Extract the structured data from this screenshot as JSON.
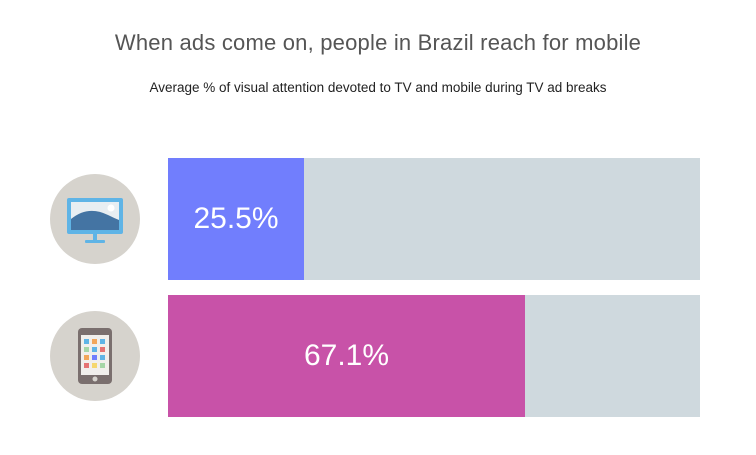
{
  "title": "When ads come on, people in Brazil reach for mobile",
  "subtitle": "Average % of visual attention devoted to TV and mobile during TV ad breaks",
  "chart_data": {
    "type": "bar",
    "orientation": "horizontal",
    "title": "When ads come on, people in Brazil reach for mobile",
    "subtitle": "Average % of visual attention devoted to TV and mobile during TV ad breaks",
    "categories": [
      "TV",
      "Mobile"
    ],
    "values": [
      25.5,
      67.1
    ],
    "labels": [
      "25.5%",
      "67.1%"
    ],
    "xlim": [
      0,
      100
    ],
    "unit": "%",
    "colors": [
      "#717efd",
      "#c852a8"
    ],
    "track_color": "#cfd9de",
    "icons": [
      "tv-icon",
      "smartphone-icon"
    ]
  }
}
